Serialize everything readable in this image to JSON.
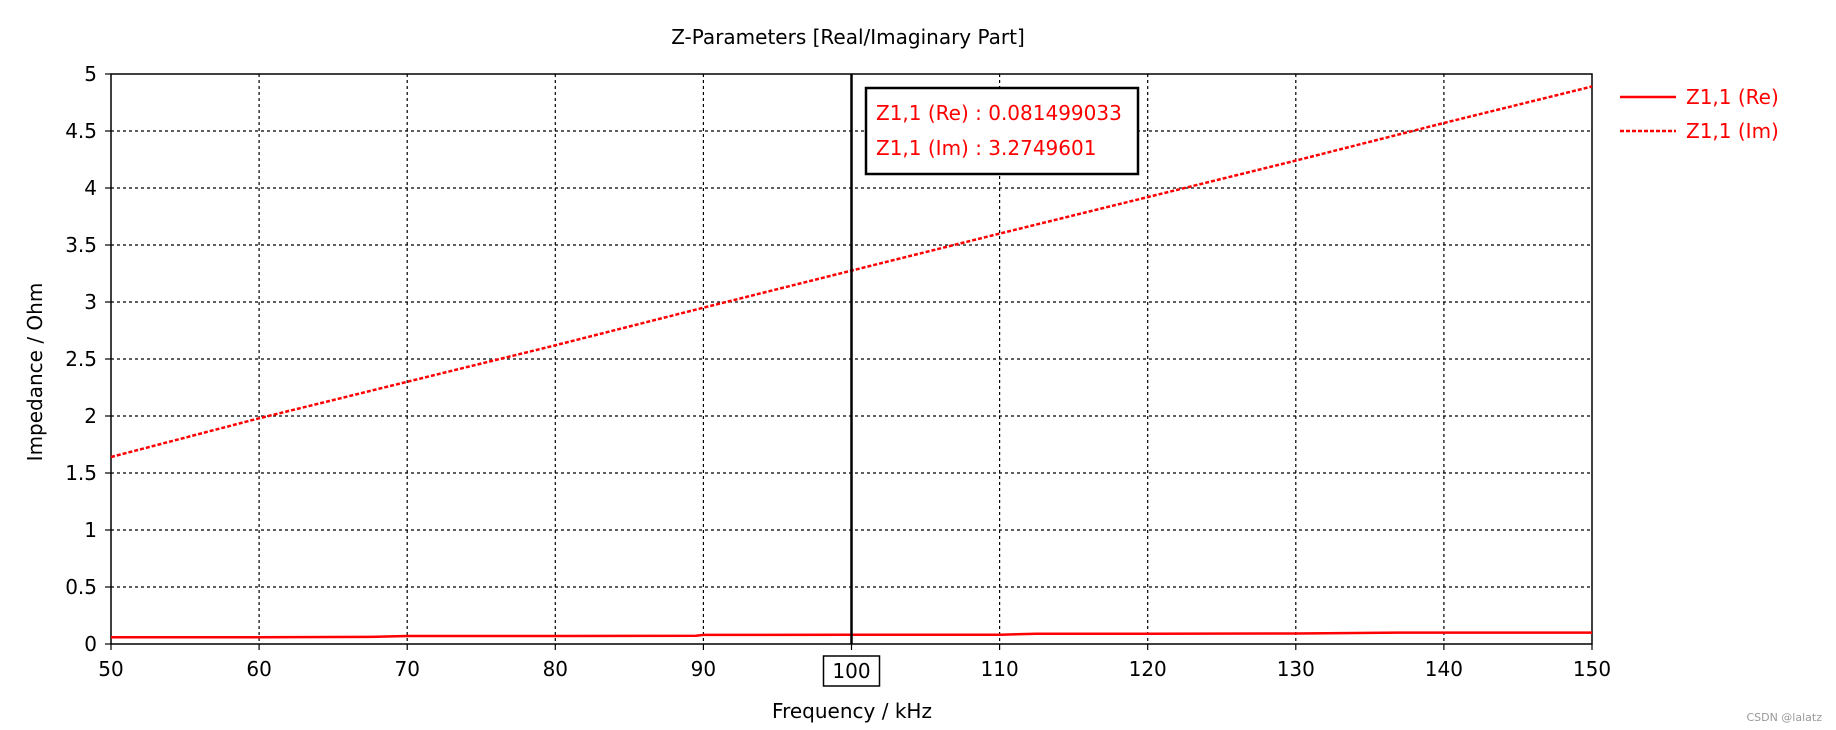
{
  "chart_data": {
    "type": "line",
    "title": "Z-Parameters [Real/Imaginary Part]",
    "xlabel": "Frequency / kHz",
    "ylabel": "Impedance / Ohm",
    "xlim": [
      50,
      150
    ],
    "ylim": [
      0,
      5
    ],
    "x_ticks": [
      "50",
      "60",
      "70",
      "80",
      "90",
      "100",
      "110",
      "120",
      "130",
      "140",
      "150"
    ],
    "y_ticks": [
      "0",
      "0.5",
      "1",
      "1.5",
      "2",
      "2.5",
      "3",
      "3.5",
      "4",
      "4.5",
      "5"
    ],
    "grid": true,
    "legend_position": "right",
    "series": [
      {
        "name": "Z1,1 (Re)",
        "style": "solid",
        "color": "#ff0000",
        "x": [
          50,
          60,
          67.5,
          70,
          80,
          89.5,
          90,
          100,
          110,
          112.5,
          120,
          130,
          137,
          140,
          150
        ],
        "y": [
          0.06,
          0.06,
          0.062,
          0.07,
          0.07,
          0.072,
          0.08,
          0.0815,
          0.082,
          0.09,
          0.09,
          0.092,
          0.1,
          0.1,
          0.1
        ]
      },
      {
        "name": "Z1,1 (Im)",
        "style": "dashed",
        "color": "#ff0000",
        "x": [
          50,
          60,
          70,
          80,
          90,
          100,
          110,
          120,
          130,
          140,
          150
        ],
        "y": [
          1.64,
          1.98,
          2.3,
          2.62,
          2.95,
          3.275,
          3.6,
          3.92,
          4.24,
          4.57,
          4.89
        ]
      }
    ],
    "marker": {
      "x": 100,
      "x_label": "100",
      "readouts": [
        "Z1,1 (Re) : 0.081499033",
        "Z1,1 (Im) : 3.2749601"
      ]
    }
  },
  "watermark": "CSDN @lalatz"
}
